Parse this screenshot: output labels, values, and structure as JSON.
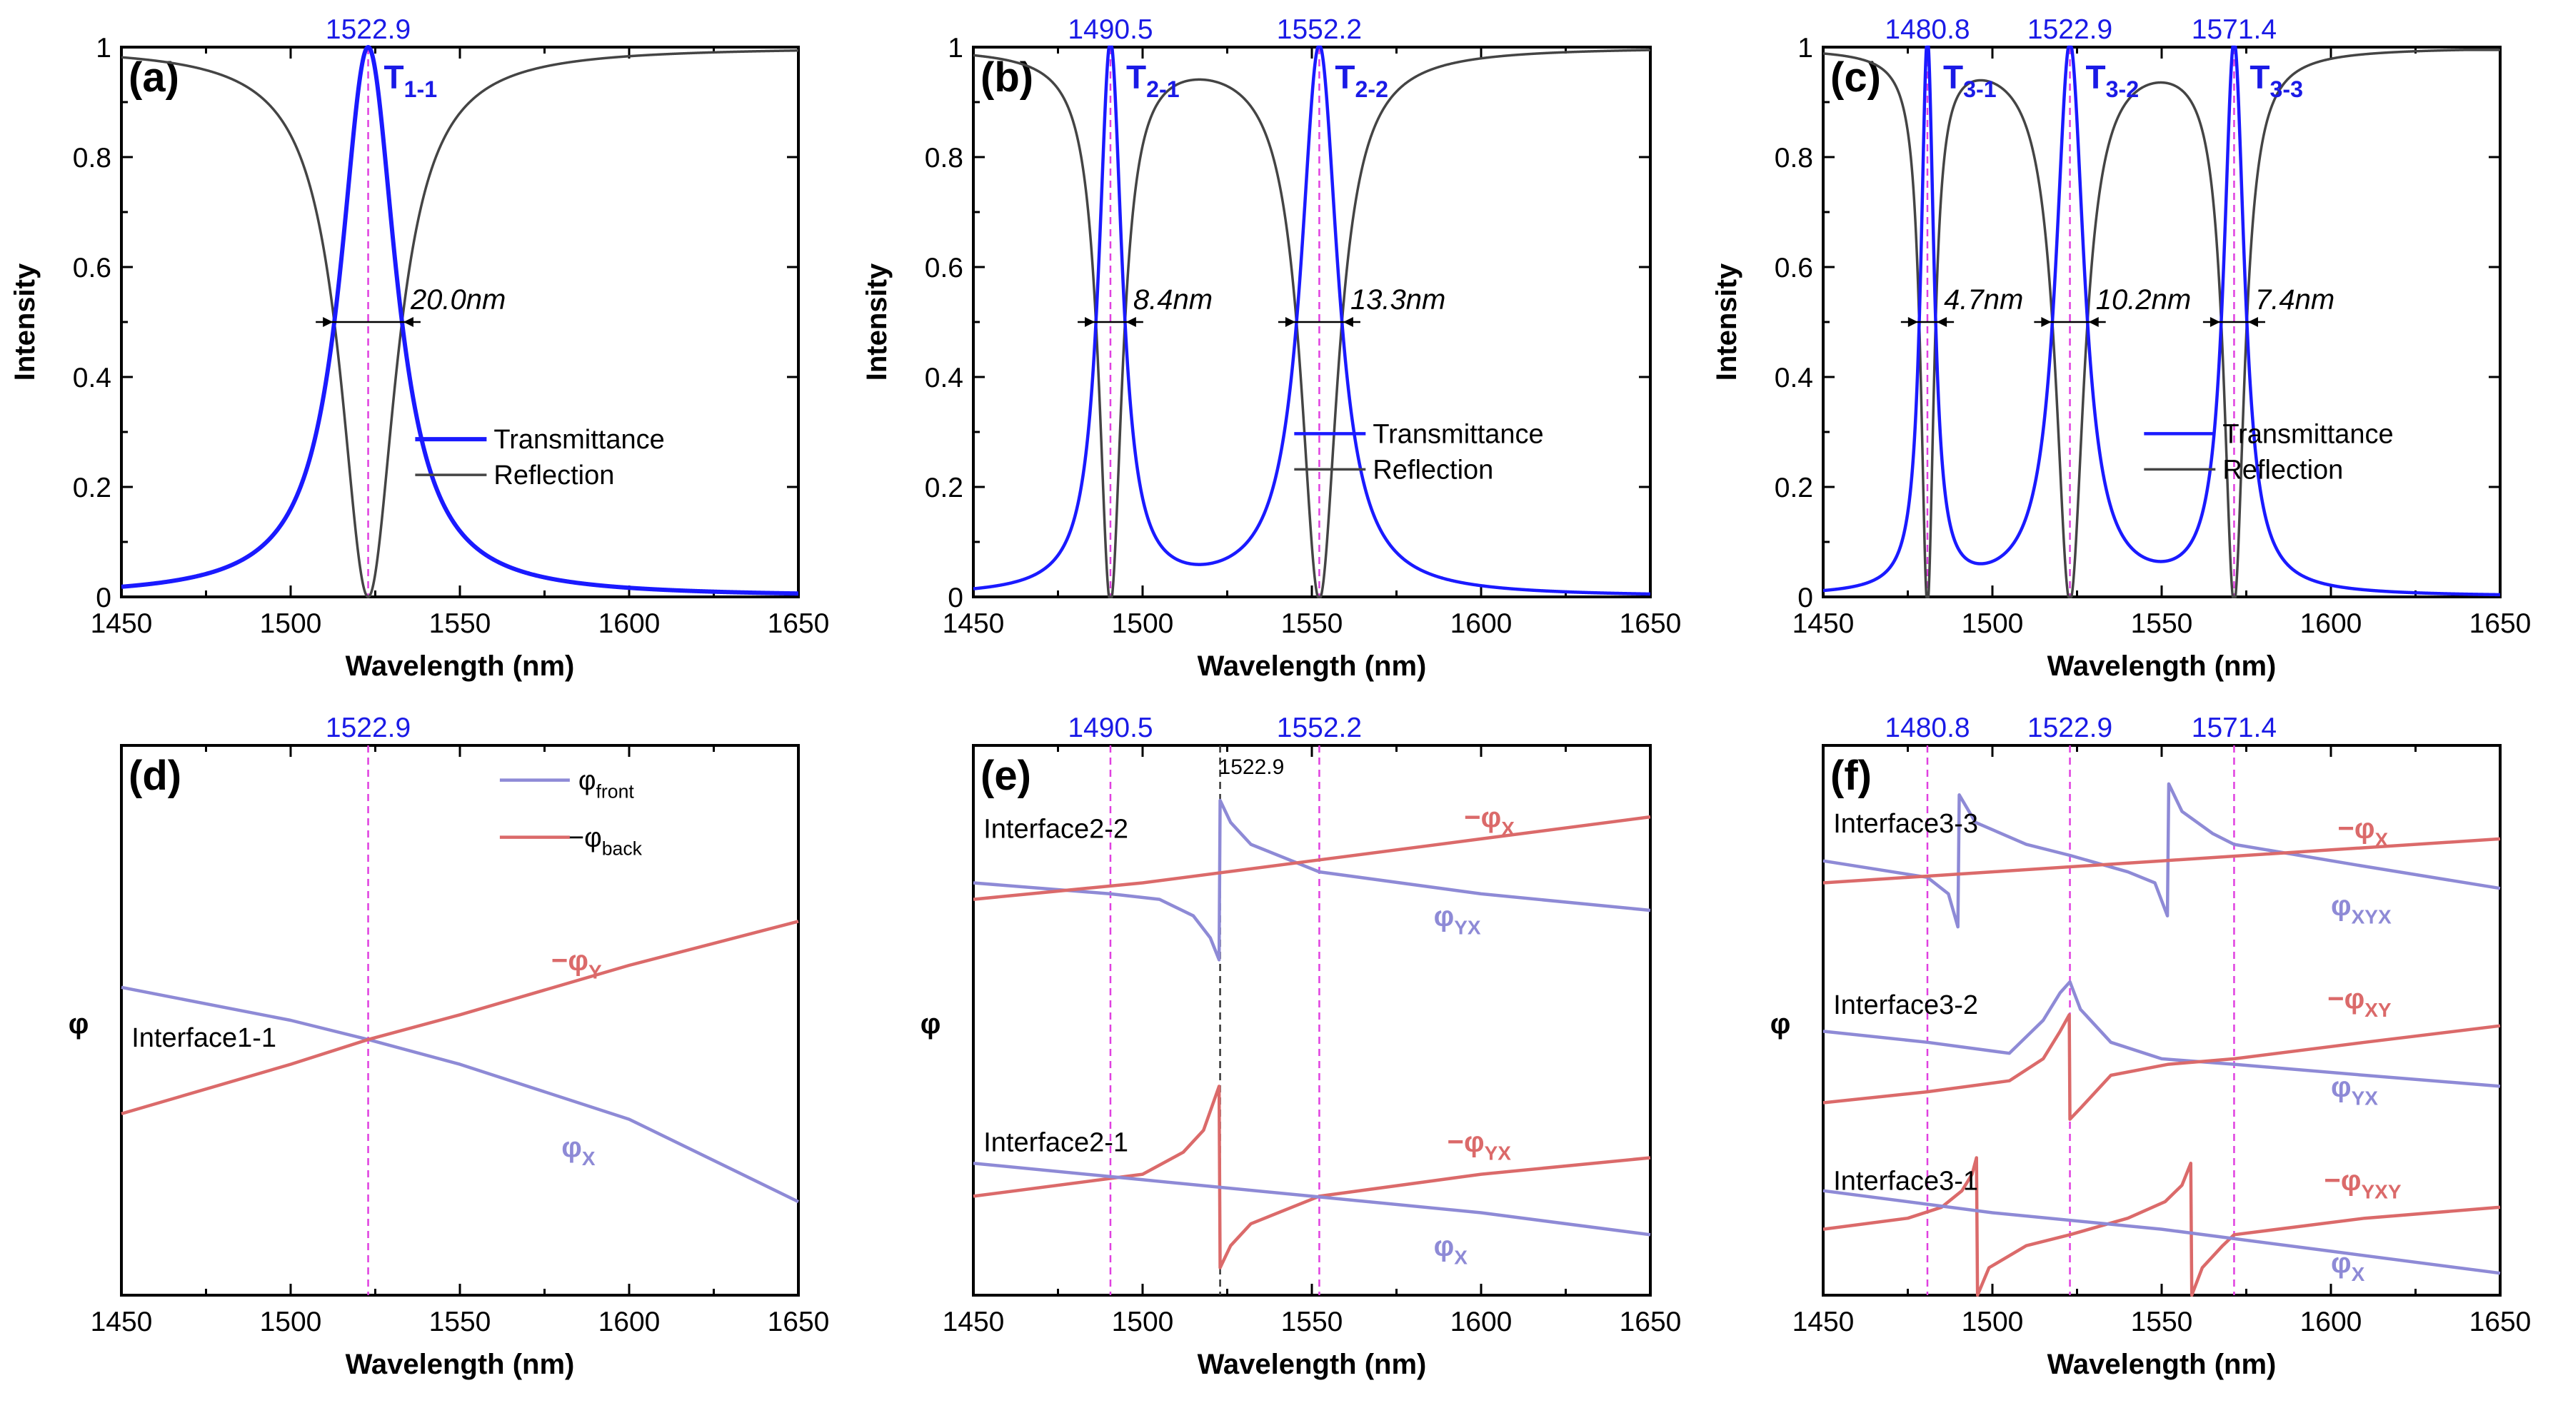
{
  "colors": {
    "transmittance": "#1a1aff",
    "reflection": "#444444",
    "phi_front": "#8e8ad6",
    "phi_back": "#db6a6a",
    "marker": "#e040e0",
    "label_blue": "#1a1ae6"
  },
  "chart_data": [
    {
      "id": "a",
      "type": "line",
      "panel": "(a)",
      "xlabel": "Wavelength (nm)",
      "ylabel": "Intensity",
      "xlim": [
        1450,
        1650
      ],
      "ylim": [
        0,
        1
      ],
      "xticks": [
        "1450",
        "1500",
        "1550",
        "1600",
        "1650"
      ],
      "yticks": [
        "0",
        "0.2",
        "0.4",
        "0.6",
        "0.8",
        "1"
      ],
      "peaks": [
        1522.9
      ],
      "peak_labels": [
        "1522.9"
      ],
      "t_labels": [
        {
          "main": "T",
          "sub": "1-1"
        }
      ],
      "fwhm": [
        {
          "center": 1522.9,
          "width": 20.0,
          "label": "20.0nm"
        }
      ],
      "series": [
        {
          "name": "Transmittance",
          "model": "lorentz",
          "centers": [
            1522.9
          ],
          "widths": [
            20.0
          ],
          "baseline": 0.0
        },
        {
          "name": "Reflection",
          "model": "one_minus_transmittance"
        }
      ],
      "legend": [
        "Transmittance",
        "Reflection"
      ]
    },
    {
      "id": "b",
      "type": "line",
      "panel": "(b)",
      "xlabel": "Wavelength (nm)",
      "ylabel": "Intensity",
      "xlim": [
        1450,
        1650
      ],
      "ylim": [
        0,
        1
      ],
      "xticks": [
        "1450",
        "1500",
        "1550",
        "1600",
        "1650"
      ],
      "yticks": [
        "0",
        "0.2",
        "0.4",
        "0.6",
        "0.8",
        "1"
      ],
      "peaks": [
        1490.5,
        1552.2
      ],
      "peak_labels": [
        "1490.5",
        "1552.2"
      ],
      "t_labels": [
        {
          "main": "T",
          "sub": "2-1"
        },
        {
          "main": "T",
          "sub": "2-2"
        }
      ],
      "fwhm": [
        {
          "center": 1490.5,
          "width": 8.4,
          "label": "8.4nm"
        },
        {
          "center": 1552.2,
          "width": 13.3,
          "label": "13.3nm"
        }
      ],
      "series": [
        {
          "name": "Transmittance",
          "model": "lorentz",
          "centers": [
            1490.5,
            1552.2
          ],
          "widths": [
            8.4,
            13.3
          ],
          "baseline": 0.0
        },
        {
          "name": "Reflection",
          "model": "one_minus_transmittance"
        }
      ],
      "legend": [
        "Transmittance",
        "Reflection"
      ]
    },
    {
      "id": "c",
      "type": "line",
      "panel": "(c)",
      "xlabel": "Wavelength (nm)",
      "ylabel": "Intensity",
      "xlim": [
        1450,
        1650
      ],
      "ylim": [
        0,
        1
      ],
      "xticks": [
        "1450",
        "1500",
        "1550",
        "1600",
        "1650"
      ],
      "yticks": [
        "0",
        "0.2",
        "0.4",
        "0.6",
        "0.8",
        "1"
      ],
      "peaks": [
        1480.8,
        1522.9,
        1571.4
      ],
      "peak_labels": [
        "1480.8",
        "1522.9",
        "1571.4"
      ],
      "t_labels": [
        {
          "main": "T",
          "sub": "3-1"
        },
        {
          "main": "T",
          "sub": "3-2"
        },
        {
          "main": "T",
          "sub": "3-3"
        }
      ],
      "fwhm": [
        {
          "center": 1480.8,
          "width": 4.7,
          "label": "4.7nm"
        },
        {
          "center": 1522.9,
          "width": 10.2,
          "label": "10.2nm"
        },
        {
          "center": 1571.4,
          "width": 7.4,
          "label": "7.4nm"
        }
      ],
      "series": [
        {
          "name": "Transmittance",
          "model": "lorentz",
          "centers": [
            1480.8,
            1522.9,
            1571.4
          ],
          "widths": [
            4.7,
            10.2,
            7.4
          ],
          "baseline": 0.0
        },
        {
          "name": "Reflection",
          "model": "one_minus_transmittance"
        }
      ],
      "legend": [
        "Transmittance",
        "Reflection"
      ]
    },
    {
      "id": "d",
      "type": "line",
      "panel": "(d)",
      "xlabel": "Wavelength (nm)",
      "ylabel": "φ",
      "xlim": [
        1450,
        1650
      ],
      "ylim": [
        0,
        1
      ],
      "xticks": [
        "1450",
        "1500",
        "1550",
        "1600",
        "1650"
      ],
      "peaks": [
        1522.9
      ],
      "peak_labels": [
        "1522.9"
      ],
      "legend": [
        {
          "main": "φ",
          "sub": "front"
        },
        {
          "main": "−φ",
          "sub": "back"
        }
      ],
      "interfaces": [
        {
          "label": "Interface1-1",
          "x": 1453,
          "y": 0.47
        }
      ],
      "curve_labels": [
        {
          "main": "−φ",
          "sub": "Y",
          "x": 1577,
          "y": 0.61,
          "series": "back"
        },
        {
          "main": "φ",
          "sub": "X",
          "x": 1580,
          "y": 0.27,
          "series": "front"
        }
      ],
      "series": [
        {
          "name": "φX",
          "kind": "front",
          "points": [
            [
              1450,
              0.56
            ],
            [
              1500,
              0.5
            ],
            [
              1522.9,
              0.465
            ],
            [
              1550,
              0.42
            ],
            [
              1600,
              0.32
            ],
            [
              1650,
              0.17
            ]
          ]
        },
        {
          "name": "−φY",
          "kind": "back",
          "points": [
            [
              1450,
              0.33
            ],
            [
              1500,
              0.42
            ],
            [
              1522.9,
              0.465
            ],
            [
              1550,
              0.51
            ],
            [
              1600,
              0.6
            ],
            [
              1650,
              0.68
            ]
          ]
        }
      ]
    },
    {
      "id": "e",
      "type": "line",
      "panel": "(e)",
      "xlabel": "Wavelength (nm)",
      "ylabel": "φ",
      "xlim": [
        1450,
        1650
      ],
      "ylim": [
        0,
        1
      ],
      "xticks": [
        "1450",
        "1500",
        "1550",
        "1600",
        "1650"
      ],
      "peaks": [
        1490.5,
        1552.2
      ],
      "peak_labels": [
        "1490.5",
        "1552.2"
      ],
      "extra_line": {
        "x": 1522.9,
        "label": "1522.9"
      },
      "interfaces": [
        {
          "label": "Interface2-2",
          "x": 1453,
          "y": 0.85
        },
        {
          "label": "Interface2-1",
          "x": 1453,
          "y": 0.28
        }
      ],
      "curve_labels": [
        {
          "main": "−φ",
          "sub": "X",
          "x": 1595,
          "y": 0.87,
          "series": "back"
        },
        {
          "main": "φ",
          "sub": "YX",
          "x": 1586,
          "y": 0.69,
          "series": "front"
        },
        {
          "main": "−φ",
          "sub": "YX",
          "x": 1590,
          "y": 0.28,
          "series": "back"
        },
        {
          "main": "φ",
          "sub": "X",
          "x": 1586,
          "y": 0.09,
          "series": "front"
        }
      ],
      "series": [
        {
          "name": "φYX",
          "kind": "front",
          "points": [
            [
              1450,
              0.75
            ],
            [
              1490.5,
              0.73
            ],
            [
              1505,
              0.72
            ],
            [
              1515,
              0.69
            ],
            [
              1520,
              0.65
            ],
            [
              1522.6,
              0.61
            ],
            [
              1522.9,
              0.9
            ],
            [
              1526,
              0.86
            ],
            [
              1532,
              0.82
            ],
            [
              1552.2,
              0.77
            ],
            [
              1600,
              0.73
            ],
            [
              1650,
              0.7
            ]
          ]
        },
        {
          "name": "−φX",
          "kind": "back",
          "points": [
            [
              1450,
              0.72
            ],
            [
              1500,
              0.75
            ],
            [
              1550,
              0.79
            ],
            [
              1600,
              0.83
            ],
            [
              1650,
              0.87
            ]
          ]
        },
        {
          "name": "−φYX",
          "kind": "back",
          "points": [
            [
              1450,
              0.18
            ],
            [
              1500,
              0.22
            ],
            [
              1512,
              0.26
            ],
            [
              1518,
              0.3
            ],
            [
              1522.6,
              0.38
            ],
            [
              1522.9,
              0.05
            ],
            [
              1526,
              0.09
            ],
            [
              1532,
              0.13
            ],
            [
              1552.2,
              0.18
            ],
            [
              1600,
              0.22
            ],
            [
              1650,
              0.25
            ]
          ]
        },
        {
          "name": "φX",
          "kind": "front",
          "points": [
            [
              1450,
              0.24
            ],
            [
              1500,
              0.21
            ],
            [
              1550,
              0.18
            ],
            [
              1600,
              0.15
            ],
            [
              1650,
              0.11
            ]
          ]
        }
      ]
    },
    {
      "id": "f",
      "type": "line",
      "panel": "(f)",
      "xlabel": "Wavelength (nm)",
      "ylabel": "φ",
      "xlim": [
        1450,
        1650
      ],
      "ylim": [
        0,
        1
      ],
      "xticks": [
        "1450",
        "1500",
        "1550",
        "1600",
        "1650"
      ],
      "peaks": [
        1480.8,
        1522.9,
        1571.4
      ],
      "peak_labels": [
        "1480.8",
        "1522.9",
        "1571.4"
      ],
      "interfaces": [
        {
          "label": "Interface3-3",
          "x": 1453,
          "y": 0.86
        },
        {
          "label": "Interface3-2",
          "x": 1453,
          "y": 0.53
        },
        {
          "label": "Interface3-1",
          "x": 1453,
          "y": 0.21
        }
      ],
      "curve_labels": [
        {
          "main": "−φ",
          "sub": "X",
          "x": 1602,
          "y": 0.85,
          "series": "back"
        },
        {
          "main": "φ",
          "sub": "XYX",
          "x": 1600,
          "y": 0.71,
          "series": "front"
        },
        {
          "main": "−φ",
          "sub": "XY",
          "x": 1599,
          "y": 0.54,
          "series": "back"
        },
        {
          "main": "φ",
          "sub": "YX",
          "x": 1600,
          "y": 0.38,
          "series": "front"
        },
        {
          "main": "−φ",
          "sub": "YXY",
          "x": 1598,
          "y": 0.21,
          "series": "back"
        },
        {
          "main": "φ",
          "sub": "X",
          "x": 1600,
          "y": 0.06,
          "series": "front"
        }
      ],
      "series": [
        {
          "name": "φXYX",
          "kind": "front",
          "points": [
            [
              1450,
              0.79
            ],
            [
              1480.8,
              0.76
            ],
            [
              1487,
              0.73
            ],
            [
              1489.8,
              0.67
            ],
            [
              1490.2,
              0.91
            ],
            [
              1495,
              0.86
            ],
            [
              1510,
              0.82
            ],
            [
              1522.9,
              0.8
            ],
            [
              1540,
              0.77
            ],
            [
              1548,
              0.75
            ],
            [
              1551.7,
              0.69
            ],
            [
              1552.1,
              0.93
            ],
            [
              1556,
              0.88
            ],
            [
              1565,
              0.84
            ],
            [
              1571.4,
              0.82
            ],
            [
              1610,
              0.78
            ],
            [
              1650,
              0.74
            ]
          ]
        },
        {
          "name": "−φX",
          "kind": "back",
          "points": [
            [
              1450,
              0.75
            ],
            [
              1500,
              0.77
            ],
            [
              1550,
              0.79
            ],
            [
              1600,
              0.81
            ],
            [
              1650,
              0.83
            ]
          ]
        },
        {
          "name": "φYX",
          "kind": "front",
          "points": [
            [
              1450,
              0.48
            ],
            [
              1480.8,
              0.46
            ],
            [
              1505,
              0.44
            ],
            [
              1515,
              0.5
            ],
            [
              1520,
              0.55
            ],
            [
              1522.9,
              0.57
            ],
            [
              1526,
              0.52
            ],
            [
              1535,
              0.46
            ],
            [
              1550,
              0.43
            ],
            [
              1571.4,
              0.42
            ],
            [
              1610,
              0.4
            ],
            [
              1650,
              0.38
            ]
          ]
        },
        {
          "name": "−φXY",
          "kind": "back",
          "points": [
            [
              1450,
              0.35
            ],
            [
              1480.8,
              0.37
            ],
            [
              1505,
              0.39
            ],
            [
              1515,
              0.43
            ],
            [
              1520,
              0.48
            ],
            [
              1522.7,
              0.51
            ],
            [
              1522.9,
              0.32
            ],
            [
              1526,
              0.34
            ],
            [
              1535,
              0.4
            ],
            [
              1552,
              0.42
            ],
            [
              1571.4,
              0.43
            ],
            [
              1610,
              0.46
            ],
            [
              1650,
              0.49
            ]
          ]
        },
        {
          "name": "−φYXY",
          "kind": "back",
          "points": [
            [
              1450,
              0.12
            ],
            [
              1475,
              0.14
            ],
            [
              1485,
              0.16
            ],
            [
              1491,
              0.19
            ],
            [
              1494,
              0.22
            ],
            [
              1495.3,
              0.25
            ],
            [
              1495.6,
              0.0
            ],
            [
              1499,
              0.05
            ],
            [
              1510,
              0.09
            ],
            [
              1522.9,
              0.11
            ],
            [
              1540,
              0.14
            ],
            [
              1551,
              0.17
            ],
            [
              1556,
              0.2
            ],
            [
              1558.6,
              0.24
            ],
            [
              1558.9,
              0.0
            ],
            [
              1562,
              0.05
            ],
            [
              1568,
              0.09
            ],
            [
              1571.4,
              0.11
            ],
            [
              1610,
              0.14
            ],
            [
              1650,
              0.16
            ]
          ]
        },
        {
          "name": "φX",
          "kind": "front",
          "points": [
            [
              1450,
              0.19
            ],
            [
              1500,
              0.15
            ],
            [
              1550,
              0.12
            ],
            [
              1600,
              0.08
            ],
            [
              1650,
              0.04
            ]
          ]
        }
      ]
    }
  ]
}
